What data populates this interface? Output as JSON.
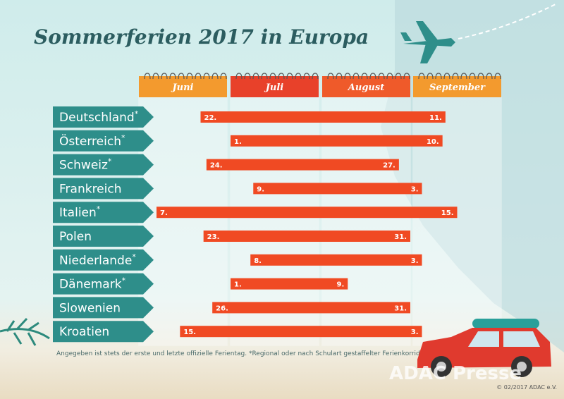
{
  "chart_data": {
    "type": "gantt",
    "title": "Sommerferien 2017 in Europa",
    "months": [
      "Juni",
      "Juli",
      "August",
      "September"
    ],
    "rows": [
      {
        "name": "Deutschland",
        "note": "*",
        "start": {
          "month": "Juni",
          "day": 22,
          "label": "22."
        },
        "end": {
          "month": "September",
          "day": 11,
          "label": "11."
        }
      },
      {
        "name": "Österreich",
        "note": "*",
        "start": {
          "month": "Juli",
          "day": 1,
          "label": "1."
        },
        "end": {
          "month": "September",
          "day": 10,
          "label": "10."
        }
      },
      {
        "name": "Schweiz",
        "note": "*",
        "start": {
          "month": "Juni",
          "day": 24,
          "label": "24."
        },
        "end": {
          "month": "August",
          "day": 27,
          "label": "27."
        }
      },
      {
        "name": "Frankreich",
        "start": {
          "month": "Juli",
          "day": 9,
          "label": "9."
        },
        "end": {
          "month": "September",
          "day": 3,
          "label": "3."
        }
      },
      {
        "name": "Italien",
        "note": "*",
        "start": {
          "month": "Juni",
          "day": 7,
          "label": "7."
        },
        "end": {
          "month": "September",
          "day": 15,
          "label": "15."
        }
      },
      {
        "name": "Polen",
        "start": {
          "month": "Juni",
          "day": 23,
          "label": "23."
        },
        "end": {
          "month": "August",
          "day": 31,
          "label": "31."
        }
      },
      {
        "name": "Niederlande",
        "note": "*",
        "start": {
          "month": "Juli",
          "day": 8,
          "label": "8."
        },
        "end": {
          "month": "September",
          "day": 3,
          "label": "3."
        }
      },
      {
        "name": "Dänemark",
        "note": "*",
        "start": {
          "month": "Juli",
          "day": 1,
          "label": "1."
        },
        "end": {
          "month": "August",
          "day": 9,
          "label": "9."
        }
      },
      {
        "name": "Slowenien",
        "start": {
          "month": "Juni",
          "day": 26,
          "label": "26."
        },
        "end": {
          "month": "August",
          "day": 31,
          "label": "31."
        }
      },
      {
        "name": "Kroatien",
        "start": {
          "month": "Juni",
          "day": 15,
          "label": "15."
        },
        "end": {
          "month": "September",
          "day": 3,
          "label": "3."
        }
      }
    ],
    "footnote": "Angegeben ist stets der erste und letzte offizielle Ferientag. *Regional oder nach Schulart gestaffelter Ferienkorridor",
    "watermark": "ADAC Presse",
    "copyright": "© 02/2017 ADAC e.V."
  }
}
